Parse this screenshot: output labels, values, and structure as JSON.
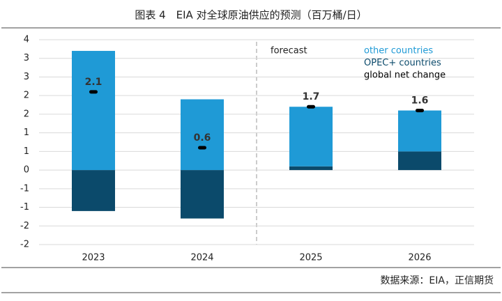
{
  "page_title": "图表 4　EIA 对全球原油供应的预测（百万桶/日）",
  "source": "数据来源：EIA，正信期货",
  "chart_data": {
    "type": "bar",
    "annotation": "forecast",
    "categories": [
      "2023",
      "2024",
      "2025",
      "2026"
    ],
    "series": [
      {
        "name": "other countries",
        "color": "#1f9ad6",
        "type": "bar",
        "values": [
          3.2,
          1.9,
          1.6,
          1.1
        ]
      },
      {
        "name": "OPEC+ countries",
        "color": "#0b4a6b",
        "type": "bar",
        "values": [
          -1.1,
          -1.3,
          0.1,
          0.5
        ]
      },
      {
        "name": "global net change",
        "color": "#000000",
        "type": "marker",
        "values": [
          2.1,
          0.6,
          1.7,
          1.6
        ]
      }
    ],
    "ylim": [
      -2,
      3.5
    ],
    "yticks": [
      {
        "value": -2,
        "label": "-2"
      },
      {
        "value": -1.5,
        "label": "-2"
      },
      {
        "value": -1,
        "label": "-1"
      },
      {
        "value": -0.5,
        "label": "-1"
      },
      0,
      {
        "value": 0.5,
        "label": "1"
      },
      1,
      {
        "value": 1.5,
        "label": "2"
      },
      2,
      {
        "value": 2.5,
        "label": "3"
      },
      3,
      {
        "value": 3.5,
        "label": "4"
      }
    ],
    "grid": true
  }
}
